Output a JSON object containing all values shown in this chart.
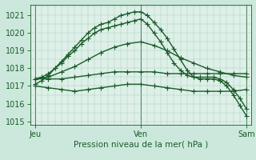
{
  "background_color": "#cce8dc",
  "plot_bg_color": "#dff0e8",
  "grid_color": "#99ccbb",
  "line_color": "#1a5c2a",
  "title": "Pression niveau de la mer( hPa )",
  "xlabel_ticks": [
    "Jeu",
    "Ven",
    "Sam"
  ],
  "xlabel_tick_positions": [
    0,
    48,
    96
  ],
  "ylim": [
    1014.8,
    1021.6
  ],
  "yticks": [
    1015,
    1016,
    1017,
    1018,
    1019,
    1020,
    1021
  ],
  "xlim": [
    -2,
    98
  ],
  "line_color_dark": "#1a5c2a",
  "marker": "+",
  "marker_size": 4,
  "linewidth": 1.0,
  "lines_x": [
    [
      0,
      3,
      6,
      9,
      12,
      15,
      18,
      21,
      24,
      27,
      30,
      33,
      36,
      39,
      42,
      45,
      48,
      51,
      54,
      57,
      60,
      63,
      66,
      69,
      72,
      75,
      78,
      81,
      84,
      87,
      90,
      93,
      96
    ],
    [
      0,
      3,
      6,
      9,
      12,
      15,
      18,
      21,
      24,
      27,
      30,
      33,
      36,
      39,
      42,
      45,
      48,
      51,
      54,
      57,
      60,
      63,
      66,
      69,
      72,
      75,
      78,
      81,
      84,
      87,
      90,
      93,
      96
    ],
    [
      0,
      6,
      12,
      18,
      24,
      30,
      36,
      42,
      48,
      54,
      60,
      66,
      72,
      78,
      84,
      90,
      96
    ],
    [
      0,
      6,
      12,
      18,
      24,
      30,
      36,
      42,
      48,
      54,
      60,
      66,
      72,
      78,
      84,
      90,
      96
    ],
    [
      0,
      6,
      12,
      18,
      24,
      30,
      36,
      42,
      48,
      54,
      60,
      66,
      72,
      78,
      84,
      90,
      96
    ]
  ],
  "lines_y": [
    [
      1017.1,
      1017.3,
      1017.6,
      1018.0,
      1018.4,
      1018.8,
      1019.2,
      1019.6,
      1020.0,
      1020.3,
      1020.5,
      1020.6,
      1020.8,
      1021.0,
      1021.1,
      1021.2,
      1021.2,
      1021.0,
      1020.6,
      1020.2,
      1019.7,
      1019.1,
      1018.5,
      1017.9,
      1017.5,
      1017.4,
      1017.4,
      1017.4,
      1017.3,
      1017.0,
      1016.5,
      1015.9,
      1015.3
    ],
    [
      1017.4,
      1017.5,
      1017.7,
      1018.0,
      1018.3,
      1018.7,
      1019.0,
      1019.4,
      1019.7,
      1020.0,
      1020.2,
      1020.3,
      1020.4,
      1020.5,
      1020.6,
      1020.7,
      1020.8,
      1020.5,
      1020.0,
      1019.5,
      1018.9,
      1018.3,
      1017.9,
      1017.6,
      1017.5,
      1017.5,
      1017.5,
      1017.5,
      1017.4,
      1017.2,
      1016.8,
      1016.3,
      1015.7
    ],
    [
      1017.4,
      1017.5,
      1017.8,
      1018.1,
      1018.5,
      1018.9,
      1019.2,
      1019.4,
      1019.5,
      1019.3,
      1019.0,
      1018.6,
      1018.3,
      1018.0,
      1017.8,
      1017.6,
      1017.5
    ],
    [
      1017.4,
      1017.4,
      1017.4,
      1017.5,
      1017.6,
      1017.7,
      1017.8,
      1017.8,
      1017.8,
      1017.8,
      1017.7,
      1017.7,
      1017.7,
      1017.7,
      1017.7,
      1017.7,
      1017.7
    ],
    [
      1017.0,
      1016.9,
      1016.8,
      1016.7,
      1016.8,
      1016.9,
      1017.0,
      1017.1,
      1017.1,
      1017.0,
      1016.9,
      1016.8,
      1016.7,
      1016.7,
      1016.7,
      1016.7,
      1016.8
    ]
  ]
}
